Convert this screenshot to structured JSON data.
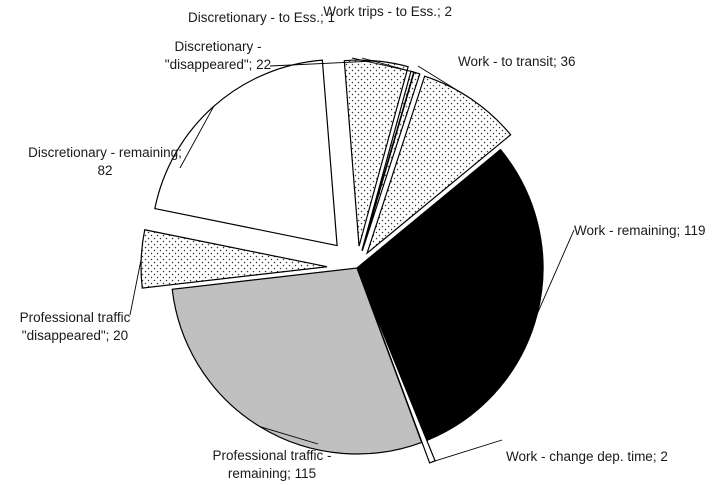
{
  "chart_data": {
    "type": "pie",
    "title": "",
    "legend": "none",
    "slices": [
      {
        "label": "Work trips - to Ess.",
        "value": 2,
        "display_label": "Work trips - to Ess.; 2",
        "fill": "dots",
        "exploded": true
      },
      {
        "label": "Work - to transit",
        "value": 36,
        "display_label": "Work - to transit; 36",
        "fill": "dots",
        "exploded": true
      },
      {
        "label": "Work - remaining",
        "value": 119,
        "display_label": "Work - remaining; 119",
        "fill": "#000000",
        "exploded": false
      },
      {
        "label": "Work - change dep. time",
        "value": 2,
        "display_label": "Work - change dep. time; 2",
        "fill": "#ffffff",
        "exploded": true
      },
      {
        "label": "Professional traffic - remaining",
        "value": 115,
        "display_label": [
          "Professional traffic -",
          "remaining; 115"
        ],
        "fill": "#c0c0c0",
        "exploded": false
      },
      {
        "label": "Professional traffic \"disappeared\"",
        "value": 20,
        "display_label": [
          "Professional traffic",
          "\"disappeared\"; 20"
        ],
        "fill": "dots",
        "exploded": true
      },
      {
        "label": "Discretionary - remaining",
        "value": 82,
        "display_label": [
          "Discretionary - remaining;",
          "82"
        ],
        "fill": "#ffffff",
        "exploded": true
      },
      {
        "label": "Discretionary - \"disappeared\"",
        "value": 22,
        "display_label": [
          "Discretionary -",
          "\"disappeared\"; 22"
        ],
        "fill": "dots",
        "exploded": true
      },
      {
        "label": "Discretionary - to Ess.",
        "value": 1,
        "display_label": "Discretionary - to Ess.; 1",
        "fill": "dots",
        "exploded": true
      }
    ]
  }
}
